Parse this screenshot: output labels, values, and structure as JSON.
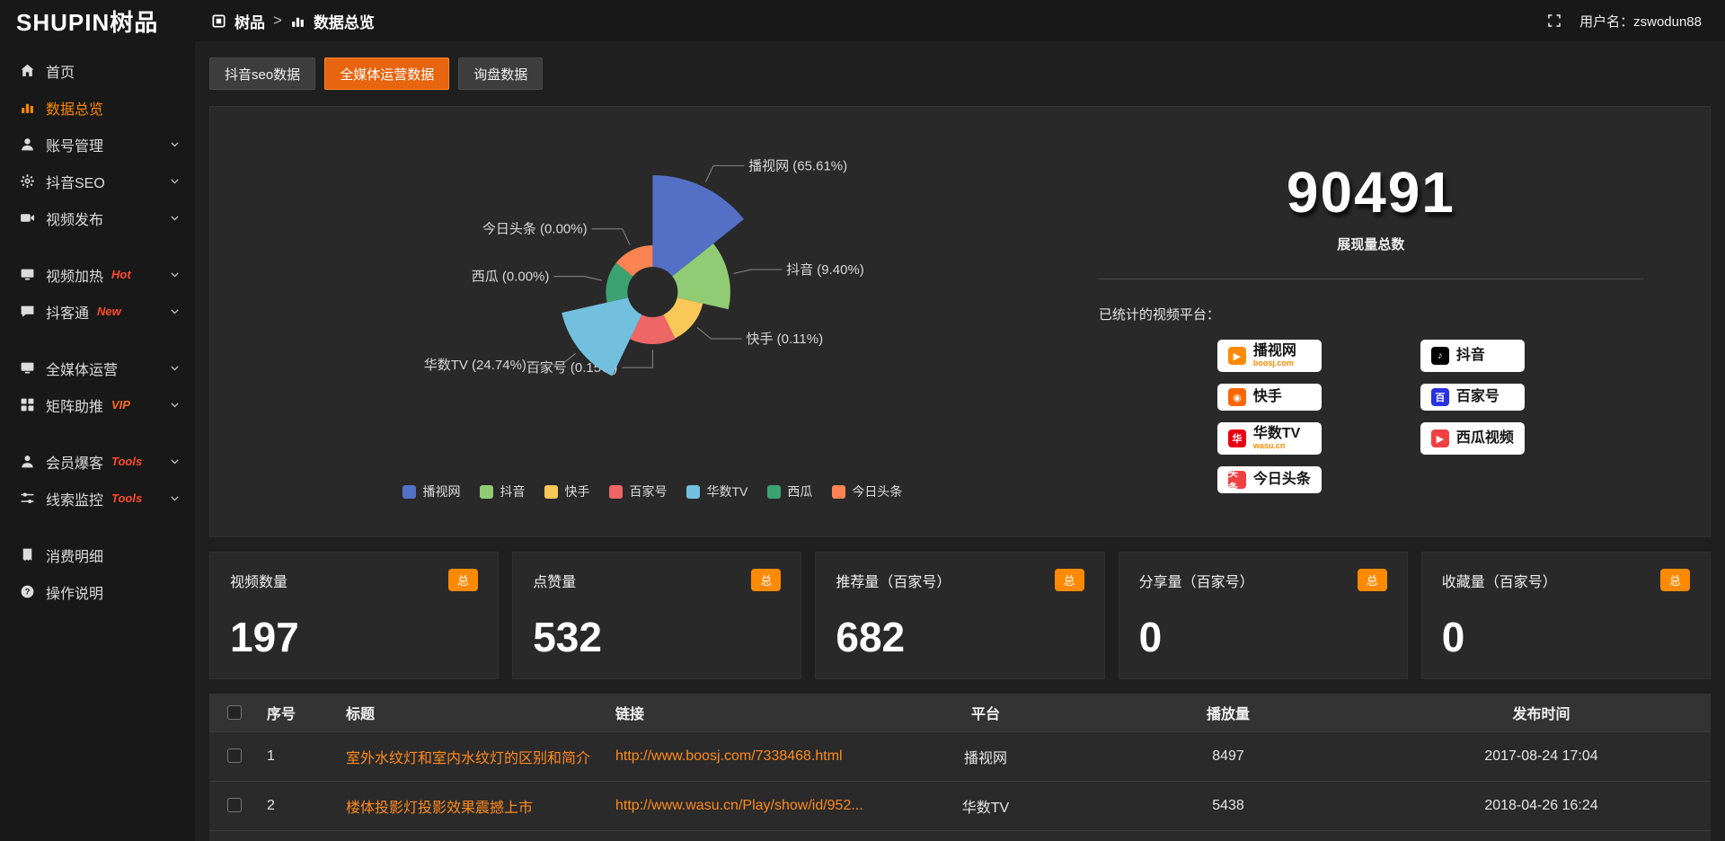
{
  "theme": {
    "accent": "#ff8a00"
  },
  "brand": {
    "logo": "SHUPIN树品"
  },
  "topbar": {
    "breadcrumb_root": "树品",
    "breadcrumb_separator": ">",
    "breadcrumb_current": "数据总览",
    "username": "用户名：zswodun88"
  },
  "sidebar": {
    "items": [
      {
        "label": "首页",
        "icon": "home-icon",
        "active": false,
        "chevron": false,
        "tag": "",
        "tag_color": "",
        "gap": false
      },
      {
        "label": "数据总览",
        "icon": "chart-icon",
        "active": true,
        "chevron": false,
        "tag": "",
        "tag_color": "",
        "gap": false
      },
      {
        "label": "账号管理",
        "icon": "user-icon",
        "active": false,
        "chevron": true,
        "tag": "",
        "tag_color": "",
        "gap": false
      },
      {
        "label": "抖音SEO",
        "icon": "gear-icon",
        "active": false,
        "chevron": true,
        "tag": "",
        "tag_color": "",
        "gap": false
      },
      {
        "label": "视频发布",
        "icon": "video-icon",
        "active": false,
        "chevron": true,
        "tag": "",
        "tag_color": "",
        "gap": false
      },
      {
        "label": "视频加热",
        "icon": "display-icon",
        "active": false,
        "chevron": true,
        "tag": "Hot",
        "tag_color": "#ff4a2d",
        "gap": true
      },
      {
        "label": "抖客通",
        "icon": "chat-icon",
        "active": false,
        "chevron": true,
        "tag": "New",
        "tag_color": "#ff4a2d",
        "gap": false
      },
      {
        "label": "全媒体运营",
        "icon": "monitor-icon",
        "active": false,
        "chevron": true,
        "tag": "",
        "tag_color": "",
        "gap": true
      },
      {
        "label": "矩阵助推",
        "icon": "grid-icon",
        "active": false,
        "chevron": true,
        "tag": "VIP",
        "tag_color": "#ff6a1a",
        "gap": false
      },
      {
        "label": "会员爆客",
        "icon": "member-icon",
        "active": false,
        "chevron": true,
        "tag": "Tools",
        "tag_color": "#ff4a2d",
        "gap": true
      },
      {
        "label": "线索监控",
        "icon": "filter-icon",
        "active": false,
        "chevron": true,
        "tag": "Tools",
        "tag_color": "#ff4a2d",
        "gap": false
      },
      {
        "label": "消费明细",
        "icon": "bill-icon",
        "active": false,
        "chevron": false,
        "tag": "",
        "tag_color": "",
        "gap": true
      },
      {
        "label": "操作说明",
        "icon": "help-icon",
        "active": false,
        "chevron": false,
        "tag": "",
        "tag_color": "",
        "gap": false
      }
    ]
  },
  "tabs": [
    {
      "label": "抖音seo数据",
      "active": false
    },
    {
      "label": "全媒体运营数据",
      "active": true
    },
    {
      "label": "询盘数据",
      "active": false
    }
  ],
  "chart_data": {
    "type": "pie",
    "variant": "nightingale-rose",
    "labels": [
      "播视网",
      "抖音",
      "快手",
      "百家号",
      "华数TV",
      "西瓜",
      "今日头条"
    ],
    "values_percent": [
      65.61,
      9.4,
      0.11,
      0.15,
      24.74,
      0,
      0
    ],
    "colors": [
      "#5470c6",
      "#91cc75",
      "#fac858",
      "#ee6666",
      "#73c0de",
      "#3ba272",
      "#fc8452"
    ],
    "legend_position": "bottom",
    "label_format": "{name} ({value}%)"
  },
  "summary": {
    "total": "90491",
    "total_label": "展现量总数",
    "platforms_label": "已统计的视频平台：",
    "platform_badges": [
      {
        "name": "播视网",
        "sub": "boosj.com",
        "color": "#ff8a00",
        "glyph": "▶"
      },
      {
        "name": "快手",
        "sub": "",
        "color": "#ff6600",
        "glyph": "◉"
      },
      {
        "name": "华数TV",
        "sub": "wasu.cn",
        "color": "#e60012",
        "glyph": "华"
      },
      {
        "name": "今日头条",
        "sub": "",
        "color": "#f04142",
        "glyph": "头条"
      },
      {
        "name": "抖音",
        "sub": "",
        "color": "#000000",
        "glyph": "♪"
      },
      {
        "name": "百家号",
        "sub": "",
        "color": "#2932e1",
        "glyph": "百"
      },
      {
        "name": "西瓜视频",
        "sub": "",
        "color": "#f04142",
        "glyph": "▶"
      }
    ]
  },
  "stat_cards": [
    {
      "title": "视频数量",
      "badge": "总",
      "value": "197"
    },
    {
      "title": "点赞量",
      "badge": "总",
      "value": "532"
    },
    {
      "title": "推荐量（百家号）",
      "badge": "总",
      "value": "682"
    },
    {
      "title": "分享量（百家号）",
      "badge": "总",
      "value": "0"
    },
    {
      "title": "收藏量（百家号）",
      "badge": "总",
      "value": "0"
    }
  ],
  "table": {
    "headers": [
      "序号",
      "标题",
      "链接",
      "平台",
      "播放量",
      "发布时间"
    ],
    "rows": [
      {
        "no": "1",
        "title": "室外水纹灯和室内水纹灯的区别和简介",
        "link": "http://www.boosj.com/7338468.html",
        "platform": "播视网",
        "plays": "8497",
        "time": "2017-08-24 17:04"
      },
      {
        "no": "2",
        "title": "楼体投影灯投影效果震撼上市",
        "link": "http://www.wasu.cn/Play/show/id/952...",
        "platform": "华数TV",
        "plays": "5438",
        "time": "2018-04-26 16:24"
      }
    ],
    "has_partial_next_row": true
  }
}
